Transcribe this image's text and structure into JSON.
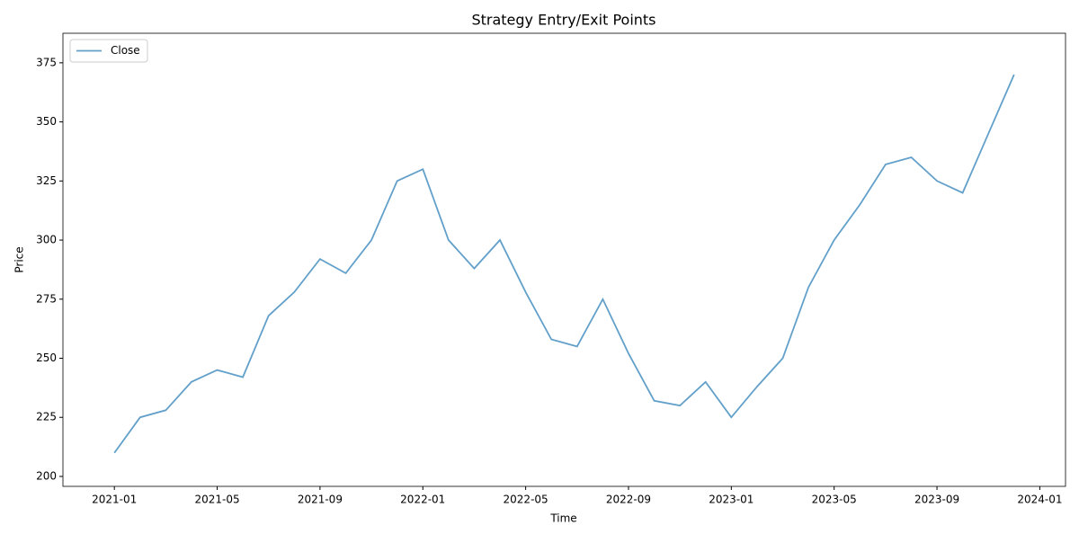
{
  "chart_data": {
    "type": "line",
    "title": "Strategy Entry/Exit Points",
    "x_label": "Time",
    "y_label": "Price",
    "x": [
      "2021-01",
      "2021-02",
      "2021-03",
      "2021-04",
      "2021-05",
      "2021-06",
      "2021-07",
      "2021-08",
      "2021-09",
      "2021-10",
      "2021-11",
      "2021-12",
      "2022-01",
      "2022-02",
      "2022-03",
      "2022-04",
      "2022-05",
      "2022-06",
      "2022-07",
      "2022-08",
      "2022-09",
      "2022-10",
      "2022-11",
      "2022-12",
      "2023-01",
      "2023-02",
      "2023-03",
      "2023-04",
      "2023-05",
      "2023-06",
      "2023-07",
      "2023-08",
      "2023-09",
      "2023-10",
      "2023-11",
      "2023-12"
    ],
    "series": [
      {
        "name": "Close",
        "color": "#1f77b4",
        "values": [
          210,
          225,
          228,
          240,
          245,
          242,
          268,
          278,
          292,
          286,
          300,
          325,
          330,
          300,
          288,
          300,
          278,
          258,
          255,
          275,
          252,
          232,
          230,
          240,
          225,
          238,
          250,
          280,
          300,
          315,
          332,
          335,
          325,
          320,
          345,
          370
        ]
      }
    ],
    "xlim": [
      "2020-11",
      "2024-02"
    ],
    "xticks": [
      "2021-01",
      "2021-05",
      "2021-09",
      "2022-01",
      "2022-05",
      "2022-09",
      "2023-01",
      "2023-05",
      "2023-09",
      "2024-01"
    ],
    "ylim": [
      195.8,
      387.5
    ],
    "yticks": [
      200,
      225,
      250,
      275,
      300,
      325,
      350,
      375
    ],
    "legend": "upper left",
    "grid": false
  }
}
